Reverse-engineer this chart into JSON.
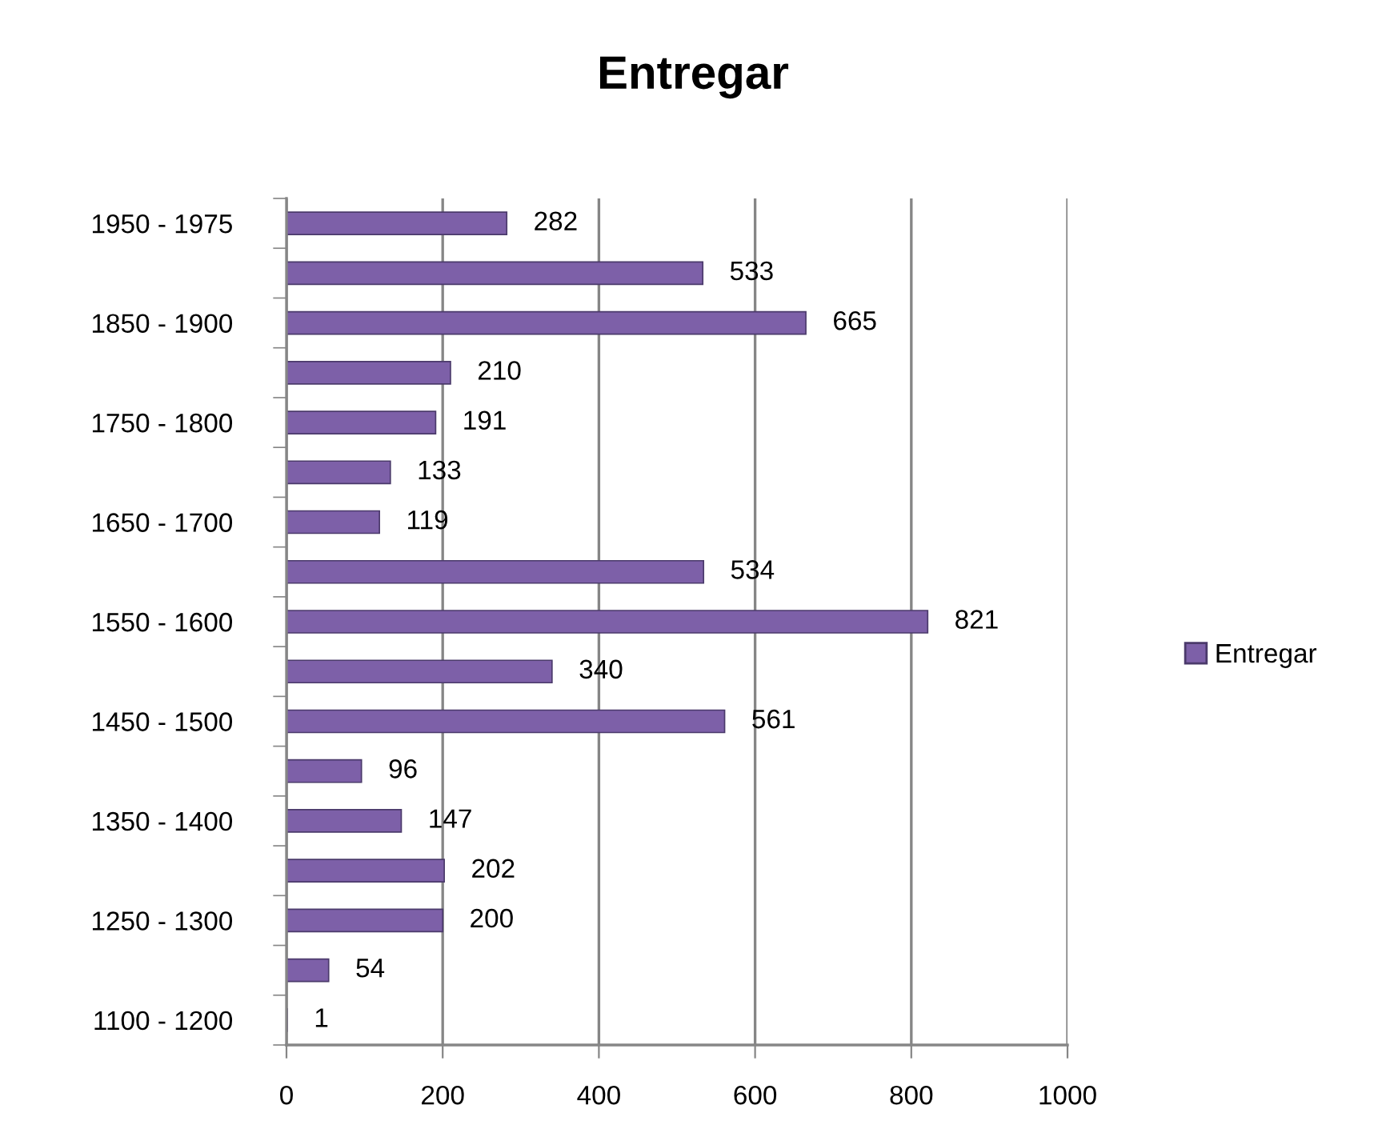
{
  "chart_data": {
    "type": "bar",
    "orientation": "horizontal",
    "title": "Entregar",
    "categories": [
      "1950 - 1975",
      null,
      "1850 - 1900",
      null,
      "1750 - 1800",
      null,
      "1650 - 1700",
      null,
      "1550 - 1600",
      null,
      "1450 - 1500",
      null,
      "1350 - 1400",
      null,
      "1250 - 1300",
      null,
      "1100 - 1200"
    ],
    "series": [
      {
        "name": "Entregar",
        "color": "#7d60a8",
        "values": [
          282,
          533,
          665,
          210,
          191,
          133,
          119,
          534,
          821,
          340,
          561,
          96,
          147,
          202,
          200,
          54,
          1
        ]
      }
    ],
    "xlim": [
      0,
      1000
    ],
    "xticks": [
      0,
      200,
      400,
      600,
      800,
      1000
    ],
    "grid": "x",
    "legend": "right",
    "data_labels": true
  }
}
